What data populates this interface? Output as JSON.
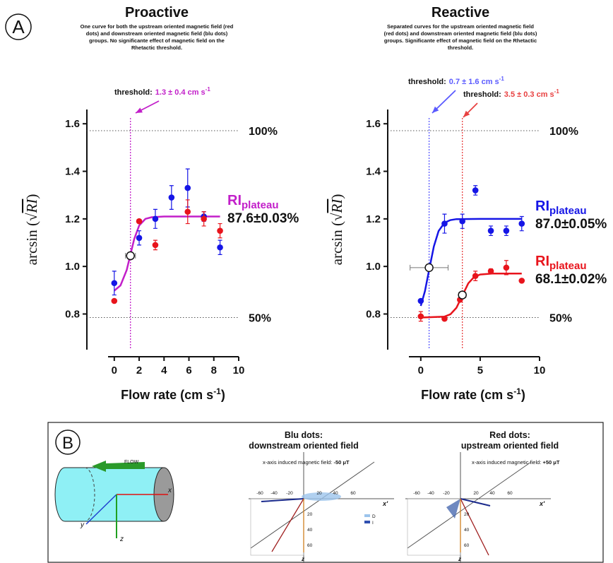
{
  "panel_labels": [
    "A",
    "B"
  ],
  "chart_data": [
    {
      "type": "scatter",
      "title": "Proactive",
      "description": [
        "One curve for both the upstream oriented magnetic field (red",
        "dots) and downstream oriented magnetic field (blu dots)",
        "groups. No significante effect of  magnetic field on the",
        "Rhetactic threshold."
      ],
      "x_label": [
        "Flow rate (cm s",
        "-1",
        ")"
      ],
      "y_label": [
        "arcsin (",
        "√",
        "RI",
        ")"
      ],
      "xlim": [
        -0.5,
        10
      ],
      "xticks": [
        0,
        2,
        4,
        6,
        8,
        10
      ],
      "ylim": [
        0.65,
        1.66
      ],
      "yticks": [
        {
          "value": 0.8,
          "label": "0.8"
        },
        {
          "value": 1.0,
          "label": "1.0"
        },
        {
          "value": 1.2,
          "label": "1.2"
        },
        {
          "value": 1.4,
          "label": "1.4"
        },
        {
          "value": 1.6,
          "label": "1.6"
        }
      ],
      "reference_lines": [
        {
          "value": 1.571,
          "label": "100%"
        },
        {
          "value": 0.785,
          "label": "50%"
        }
      ],
      "series": [
        {
          "color": "#1515e6",
          "x": [
            0,
            2,
            3.3,
            4.6,
            5.9,
            7.2,
            8.5
          ],
          "values": [
            0.93,
            1.12,
            1.2,
            1.29,
            1.33,
            1.21,
            1.08
          ],
          "errors": [
            0.05,
            0.03,
            0.04,
            0.05,
            0.08,
            0.02,
            0.03
          ]
        },
        {
          "color": "#e8141c",
          "x": [
            0,
            2,
            3.3,
            5.9,
            7.2,
            8.5
          ],
          "values": [
            0.855,
            1.19,
            1.09,
            1.23,
            1.2,
            1.15
          ],
          "errors": [
            null,
            null,
            0.02,
            0.05,
            0.03,
            0.03
          ]
        }
      ],
      "fits": [
        {
          "color": "#c21fc9",
          "x": [
            0,
            0.5,
            1,
            1.3,
            1.6,
            2,
            2.5,
            3,
            4,
            5,
            6,
            7,
            8,
            8.5
          ],
          "values": [
            0.898,
            0.92,
            0.985,
            1.05,
            1.115,
            1.172,
            1.2,
            1.207,
            1.21,
            1.21,
            1.21,
            1.21,
            1.21,
            1.21
          ]
        }
      ],
      "thresholds": [
        {
          "color": "#c21fc9",
          "x": 1.3,
          "y": 1.045,
          "x_error": 0.4,
          "label": "threshold:",
          "value_text": "1.3 ± 0.4 cm s",
          "unit_sup": "-1"
        }
      ],
      "plateaus": [
        {
          "color": "#c21fc9",
          "symbol": "RI",
          "subscript": "plateau",
          "value_label": "87.6±0.03%"
        }
      ]
    },
    {
      "type": "scatter",
      "title": "Reactive",
      "description": [
        "Separated curves for the upstream oriented magnetic field",
        "(red dots) and downstream oriented magnetic field (blu dots)",
        "groups. Significante effect of  magnetic field on the Rhetactic",
        "threshold."
      ],
      "x_label": [
        "Flow rate (cm s",
        "-1",
        ")"
      ],
      "y_label": [
        "arcsin (",
        "√",
        "RI",
        ")"
      ],
      "xlim": [
        -1,
        10
      ],
      "xticks": [
        0,
        5,
        10
      ],
      "ylim": [
        0.65,
        1.66
      ],
      "yticks": [
        {
          "value": 0.8,
          "label": "0.8"
        },
        {
          "value": 1.0,
          "label": "1.0"
        },
        {
          "value": 1.2,
          "label": "1.2"
        },
        {
          "value": 1.4,
          "label": "1.4"
        },
        {
          "value": 1.6,
          "label": "1.6"
        }
      ],
      "reference_lines": [
        {
          "value": 1.571,
          "label": "100%"
        },
        {
          "value": 0.785,
          "label": "50%"
        }
      ],
      "series": [
        {
          "color": "#1515e6",
          "x": [
            0,
            2,
            3.5,
            4.6,
            5.9,
            7.2,
            8.5
          ],
          "values": [
            0.855,
            1.18,
            1.19,
            1.32,
            1.15,
            1.15,
            1.18
          ],
          "errors": [
            null,
            0.04,
            0.03,
            0.02,
            0.02,
            0.02,
            0.03
          ]
        },
        {
          "color": "#e8141c",
          "x": [
            0,
            2,
            3.3,
            4.6,
            5.9,
            7.2,
            8.5
          ],
          "values": [
            0.79,
            0.78,
            0.86,
            0.96,
            0.98,
            0.995,
            0.94
          ],
          "errors": [
            0.02,
            null,
            null,
            0.02,
            0.01,
            0.03,
            null
          ]
        }
      ],
      "fits": [
        {
          "color": "#1515e6",
          "x": [
            0,
            0.35,
            0.7,
            1.1,
            1.5,
            2,
            2.5,
            3,
            5,
            8.5
          ],
          "values": [
            0.834,
            0.896,
            0.985,
            1.084,
            1.149,
            1.184,
            1.195,
            1.199,
            1.2,
            1.2
          ]
        },
        {
          "color": "#e8141c",
          "x": [
            0,
            2,
            2.5,
            3,
            3.5,
            4,
            4.5,
            5,
            6,
            8.5
          ],
          "values": [
            0.785,
            0.789,
            0.799,
            0.826,
            0.8775,
            0.929,
            0.956,
            0.966,
            0.97,
            0.97
          ]
        }
      ],
      "thresholds": [
        {
          "color": "#5a5aff",
          "x": 0.7,
          "y": 0.995,
          "x_error": 1.6,
          "label": "threshold:",
          "value_text": "0.7 ± 1.6 cm s",
          "unit_sup": "-1"
        },
        {
          "color": "#e84040",
          "x": 3.5,
          "y": 0.88,
          "x_error": 0.3,
          "label": "threshold:",
          "value_text": "3.5 ± 0.3 cm s",
          "unit_sup": "-1"
        }
      ],
      "plateaus": [
        {
          "color": "#1515e6",
          "symbol": "RI",
          "subscript": "plateau",
          "value_label": "87.0±0.05%"
        },
        {
          "color": "#e8141c",
          "symbol": "RI",
          "subscript": "plateau",
          "value_label": "68.1±0.02%"
        }
      ]
    }
  ],
  "panel_b": {
    "flow": "FLOW",
    "cylinder_axes": [
      "x",
      "y",
      "z"
    ],
    "panels": [
      {
        "color": "#1a1a9c",
        "title_lines": [
          "Blu dots:",
          "downstream oriented field"
        ],
        "field_text": "x-axis induced magnetic field: ",
        "field_value": "-50 μT",
        "h_ticks": [
          "-60",
          "-40",
          "-20",
          "20",
          "40",
          "60"
        ],
        "v_ticks": [
          "20",
          "40",
          "60"
        ],
        "axis_labels": [
          "x'",
          "z"
        ],
        "legend": [
          "D",
          "I"
        ]
      },
      {
        "color": "#a01818",
        "title_lines": [
          "Red dots:",
          "upstream oriented field"
        ],
        "field_text": "x-axis induced magnetic field: ",
        "field_value": "+50 μT",
        "h_ticks": [
          "-60",
          "-40",
          "-20",
          "20",
          "40",
          "60"
        ],
        "v_ticks": [
          "20",
          "40",
          "60"
        ],
        "axis_labels": [
          "x'",
          "z"
        ],
        "legend": []
      }
    ]
  }
}
